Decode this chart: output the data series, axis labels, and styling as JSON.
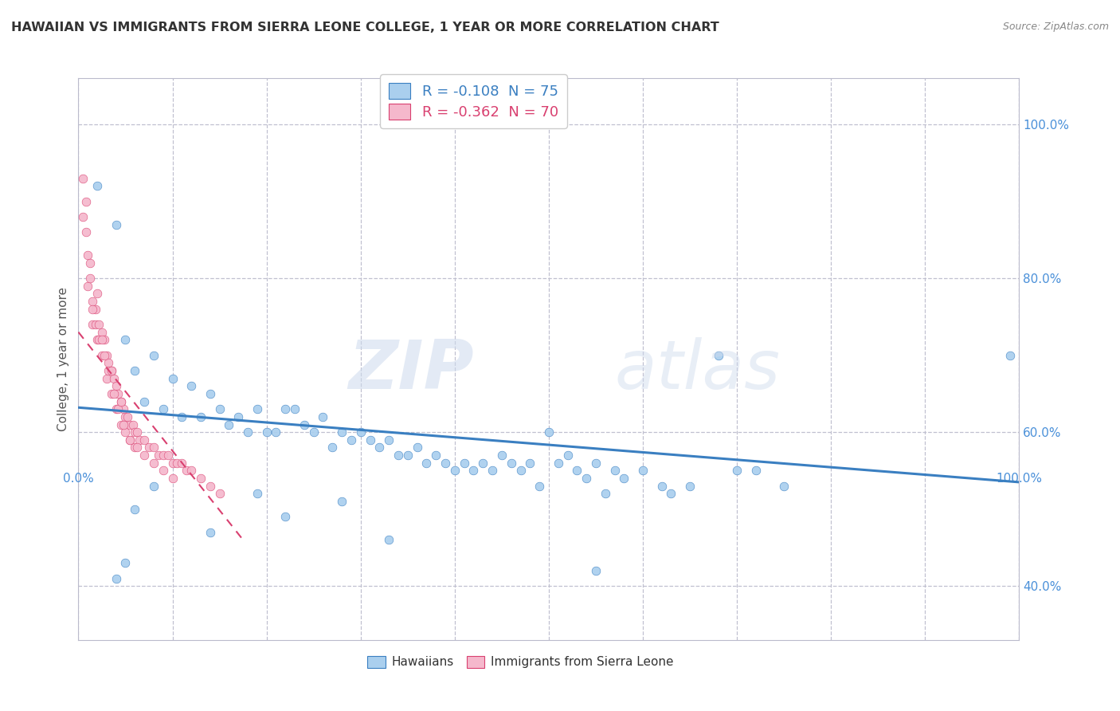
{
  "title": "HAWAIIAN VS IMMIGRANTS FROM SIERRA LEONE COLLEGE, 1 YEAR OR MORE CORRELATION CHART",
  "source": "Source: ZipAtlas.com",
  "ylabel": "College, 1 year or more",
  "watermark_zip": "ZIP",
  "watermark_atlas": "atlas",
  "legend_r1": "R = -0.108",
  "legend_n1": "N = 75",
  "legend_r2": "R = -0.362",
  "legend_n2": "N = 70",
  "hawaiian_color": "#aacfee",
  "sierra_leone_color": "#f5b8cc",
  "trend_hawaiian_color": "#3a7fc1",
  "trend_sierra_leone_color": "#d94070",
  "background_color": "#ffffff",
  "grid_color": "#c0c0d0",
  "xlim": [
    0.0,
    1.0
  ],
  "ylim": [
    0.33,
    1.06
  ],
  "trend_h_x0": 0.0,
  "trend_h_y0": 0.632,
  "trend_h_x1": 1.0,
  "trend_h_y1": 0.535,
  "trend_sl_x0": 0.0,
  "trend_sl_y0": 0.73,
  "trend_sl_x1": 0.175,
  "trend_sl_y1": 0.46,
  "hawaiian_x": [
    0.02,
    0.04,
    0.05,
    0.06,
    0.07,
    0.08,
    0.09,
    0.1,
    0.11,
    0.12,
    0.13,
    0.14,
    0.15,
    0.16,
    0.17,
    0.18,
    0.19,
    0.2,
    0.21,
    0.22,
    0.23,
    0.24,
    0.25,
    0.26,
    0.27,
    0.28,
    0.29,
    0.3,
    0.31,
    0.32,
    0.33,
    0.34,
    0.35,
    0.36,
    0.37,
    0.38,
    0.39,
    0.4,
    0.41,
    0.42,
    0.43,
    0.44,
    0.45,
    0.46,
    0.47,
    0.48,
    0.49,
    0.5,
    0.51,
    0.52,
    0.53,
    0.54,
    0.55,
    0.56,
    0.57,
    0.58,
    0.6,
    0.62,
    0.63,
    0.65,
    0.68,
    0.7,
    0.72,
    0.75,
    0.99,
    0.55,
    0.28,
    0.33,
    0.22,
    0.19,
    0.14,
    0.08,
    0.06,
    0.05,
    0.04
  ],
  "hawaiian_y": [
    0.92,
    0.87,
    0.72,
    0.68,
    0.64,
    0.7,
    0.63,
    0.67,
    0.62,
    0.66,
    0.62,
    0.65,
    0.63,
    0.61,
    0.62,
    0.6,
    0.63,
    0.6,
    0.6,
    0.63,
    0.63,
    0.61,
    0.6,
    0.62,
    0.58,
    0.6,
    0.59,
    0.6,
    0.59,
    0.58,
    0.59,
    0.57,
    0.57,
    0.58,
    0.56,
    0.57,
    0.56,
    0.55,
    0.56,
    0.55,
    0.56,
    0.55,
    0.57,
    0.56,
    0.55,
    0.56,
    0.53,
    0.6,
    0.56,
    0.57,
    0.55,
    0.54,
    0.56,
    0.52,
    0.55,
    0.54,
    0.55,
    0.53,
    0.52,
    0.53,
    0.7,
    0.55,
    0.55,
    0.53,
    0.7,
    0.42,
    0.51,
    0.46,
    0.49,
    0.52,
    0.47,
    0.53,
    0.5,
    0.43,
    0.41
  ],
  "sierra_leone_x": [
    0.005,
    0.005,
    0.01,
    0.01,
    0.012,
    0.015,
    0.015,
    0.018,
    0.02,
    0.02,
    0.022,
    0.025,
    0.025,
    0.028,
    0.03,
    0.03,
    0.032,
    0.035,
    0.035,
    0.038,
    0.04,
    0.04,
    0.042,
    0.045,
    0.045,
    0.048,
    0.05,
    0.05,
    0.052,
    0.055,
    0.055,
    0.058,
    0.06,
    0.06,
    0.062,
    0.065,
    0.07,
    0.075,
    0.08,
    0.085,
    0.09,
    0.095,
    0.1,
    0.105,
    0.11,
    0.115,
    0.12,
    0.13,
    0.14,
    0.15,
    0.008,
    0.012,
    0.018,
    0.022,
    0.028,
    0.032,
    0.038,
    0.042,
    0.048,
    0.055,
    0.062,
    0.07,
    0.08,
    0.09,
    0.1,
    0.008,
    0.015,
    0.025,
    0.035,
    0.045
  ],
  "sierra_leone_y": [
    0.93,
    0.88,
    0.83,
    0.79,
    0.82,
    0.77,
    0.74,
    0.74,
    0.78,
    0.72,
    0.74,
    0.73,
    0.7,
    0.72,
    0.7,
    0.67,
    0.69,
    0.68,
    0.65,
    0.67,
    0.66,
    0.63,
    0.65,
    0.64,
    0.61,
    0.63,
    0.62,
    0.6,
    0.62,
    0.61,
    0.59,
    0.61,
    0.6,
    0.58,
    0.6,
    0.59,
    0.59,
    0.58,
    0.58,
    0.57,
    0.57,
    0.57,
    0.56,
    0.56,
    0.56,
    0.55,
    0.55,
    0.54,
    0.53,
    0.52,
    0.86,
    0.8,
    0.76,
    0.72,
    0.7,
    0.68,
    0.65,
    0.63,
    0.61,
    0.59,
    0.58,
    0.57,
    0.56,
    0.55,
    0.54,
    0.9,
    0.76,
    0.72,
    0.68,
    0.64
  ]
}
